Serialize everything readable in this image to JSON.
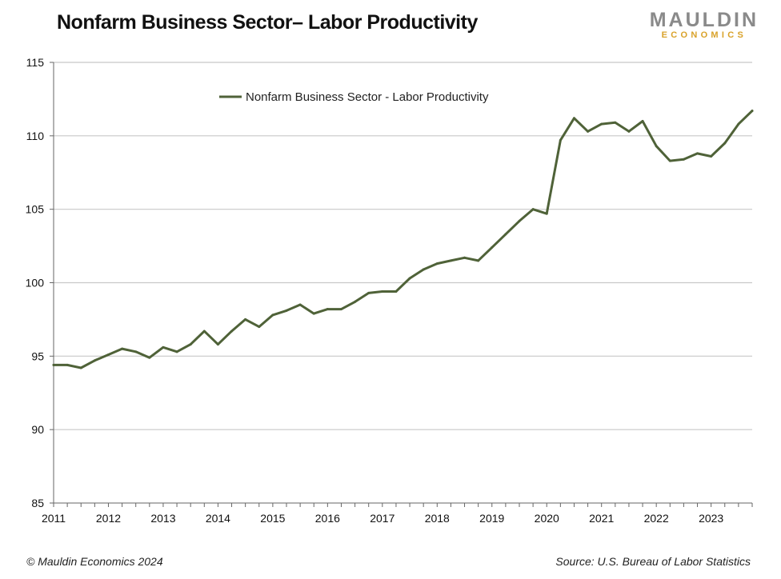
{
  "title": "Nonfarm Business Sector– Labor Productivity",
  "logo": {
    "top": "MAULDIN",
    "bottom": "ECONOMICS"
  },
  "footer": {
    "left": "© Mauldin Economics 2024",
    "right": "Source: U.S. Bureau of Labor Statistics"
  },
  "colors": {
    "series": "#4f6238",
    "grid": "#c8c8c8",
    "axis": "#666666"
  },
  "chart_data": {
    "type": "line",
    "title": "Nonfarm Business Sector– Labor Productivity",
    "xlabel": "",
    "ylabel": "",
    "ylim": [
      85,
      115
    ],
    "yticks": [
      85,
      90,
      95,
      100,
      105,
      110,
      115
    ],
    "xlim": [
      2011.0,
      2023.75
    ],
    "xticks": [
      2011,
      2012,
      2013,
      2014,
      2015,
      2016,
      2017,
      2018,
      2019,
      2020,
      2021,
      2022,
      2023
    ],
    "grid": true,
    "legend": "top-center",
    "series": [
      {
        "name": "Nonfarm Business Sector - Labor Productivity",
        "x": [
          2011.0,
          2011.25,
          2011.5,
          2011.75,
          2012.0,
          2012.25,
          2012.5,
          2012.75,
          2013.0,
          2013.25,
          2013.5,
          2013.75,
          2014.0,
          2014.25,
          2014.5,
          2014.75,
          2015.0,
          2015.25,
          2015.5,
          2015.75,
          2016.0,
          2016.25,
          2016.5,
          2016.75,
          2017.0,
          2017.25,
          2017.5,
          2017.75,
          2018.0,
          2018.25,
          2018.5,
          2018.75,
          2019.0,
          2019.25,
          2019.5,
          2019.75,
          2020.0,
          2020.25,
          2020.5,
          2020.75,
          2021.0,
          2021.25,
          2021.5,
          2021.75,
          2022.0,
          2022.25,
          2022.5,
          2022.75,
          2023.0,
          2023.25,
          2023.5,
          2023.75
        ],
        "values": [
          94.4,
          94.4,
          94.2,
          94.7,
          95.1,
          95.5,
          95.3,
          94.9,
          95.6,
          95.3,
          95.8,
          96.7,
          95.8,
          96.7,
          97.5,
          97.0,
          97.8,
          98.1,
          98.5,
          97.9,
          98.2,
          98.2,
          98.7,
          99.3,
          99.4,
          99.4,
          100.3,
          100.9,
          101.3,
          101.5,
          101.7,
          101.5,
          102.4,
          103.3,
          104.2,
          105.0,
          104.7,
          109.7,
          111.2,
          110.3,
          110.8,
          110.9,
          110.3,
          111.0,
          109.3,
          108.3,
          108.4,
          108.8,
          108.6,
          109.5,
          110.8,
          111.7
        ]
      }
    ]
  }
}
